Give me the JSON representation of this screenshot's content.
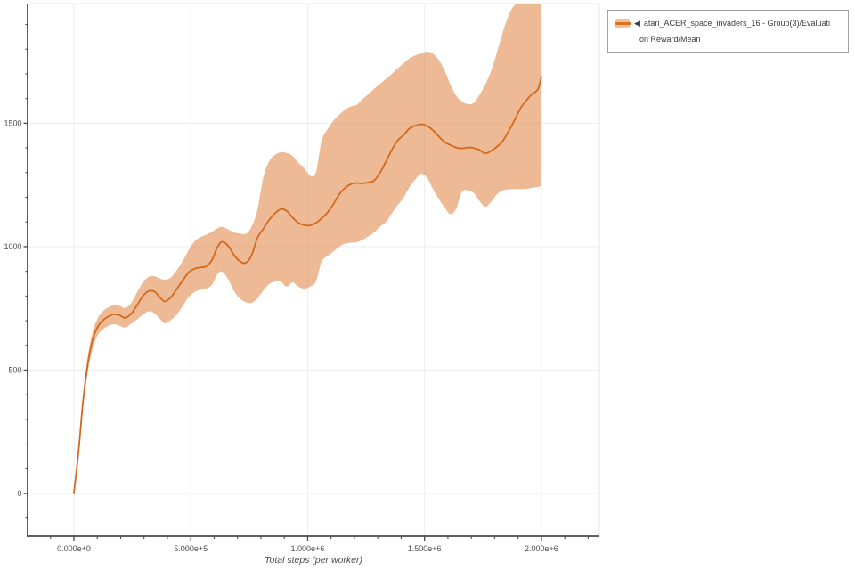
{
  "legend": {
    "collapse_icon": "◀",
    "label_full": "atari_ACER_space_invaders_16 - Group(3)/Evaluation Reward/Mean",
    "label_line1": "atari_ACER_space_invaders_16 - Group(3)/Evaluati",
    "label_line2": "on Reward/Mean"
  },
  "colors": {
    "mean_line": "#d2691e",
    "band_fill": "#e0813f",
    "band_opacity": 0.55,
    "grid": "#ededed",
    "spine_dark": "#4a4a4a",
    "plot_border": "#e4e4e4",
    "tick_label": "#4d4d4d",
    "legend_border": "#a2a2a2"
  },
  "chart_data": {
    "type": "line",
    "title": "",
    "xlabel": "Total steps (per worker)",
    "ylabel": "",
    "grid": true,
    "legend_position": "top-right-outside",
    "xlim": [
      -198000,
      2248000
    ],
    "ylim": [
      -173,
      1985
    ],
    "x_major_ticks": [
      {
        "value": 0,
        "label": "0.000e+0"
      },
      {
        "value": 500000,
        "label": "5.000e+5"
      },
      {
        "value": 1000000,
        "label": "1.000e+6"
      },
      {
        "value": 1500000,
        "label": "1.500e+6"
      },
      {
        "value": 2000000,
        "label": "2.000e+6"
      }
    ],
    "x_minor_step": 100000,
    "y_major_ticks": [
      {
        "value": 0,
        "label": "0"
      },
      {
        "value": 500,
        "label": "500"
      },
      {
        "value": 1000,
        "label": "1000"
      },
      {
        "value": 1500,
        "label": "1500"
      }
    ],
    "y_minor_step": 100,
    "series": [
      {
        "name": "atari_ACER_space_invaders_16 - Group(3)/Evaluation Reward/Mean",
        "line_color": "#d2691e",
        "band_color": "#e0813f",
        "x": [
          0,
          20000,
          40000,
          60000,
          80000,
          100000,
          120000,
          145000,
          170000,
          195000,
          220000,
          245000,
          270000,
          295000,
          320000,
          345000,
          370000,
          390000,
          415000,
          440000,
          465000,
          490000,
          515000,
          540000,
          565000,
          590000,
          615000,
          635000,
          660000,
          685000,
          710000,
          735000,
          760000,
          785000,
          810000,
          835000,
          860000,
          885000,
          910000,
          935000,
          960000,
          985000,
          1010000,
          1035000,
          1060000,
          1085000,
          1110000,
          1135000,
          1160000,
          1185000,
          1210000,
          1235000,
          1260000,
          1285000,
          1310000,
          1335000,
          1360000,
          1385000,
          1410000,
          1435000,
          1460000,
          1485000,
          1510000,
          1535000,
          1560000,
          1585000,
          1610000,
          1635000,
          1660000,
          1685000,
          1710000,
          1735000,
          1760000,
          1785000,
          1810000,
          1835000,
          1860000,
          1885000,
          1910000,
          1935000,
          1960000,
          1985000,
          2000000
        ],
        "mean": [
          0,
          172,
          382,
          528,
          622,
          672,
          698,
          716,
          726,
          722,
          712,
          728,
          762,
          800,
          820,
          818,
          792,
          778,
          795,
          828,
          862,
          895,
          910,
          916,
          920,
          945,
          1000,
          1020,
          1003,
          966,
          941,
          934,
          965,
          1035,
          1072,
          1108,
          1135,
          1152,
          1145,
          1118,
          1097,
          1087,
          1086,
          1096,
          1115,
          1138,
          1172,
          1212,
          1238,
          1253,
          1258,
          1256,
          1260,
          1268,
          1300,
          1345,
          1392,
          1430,
          1452,
          1478,
          1490,
          1496,
          1490,
          1472,
          1448,
          1424,
          1412,
          1402,
          1398,
          1402,
          1400,
          1392,
          1378,
          1388,
          1405,
          1428,
          1468,
          1512,
          1560,
          1592,
          1618,
          1638,
          1688
        ],
        "lower": [
          0,
          150,
          355,
          495,
          585,
          638,
          662,
          678,
          686,
          680,
          672,
          688,
          705,
          725,
          738,
          730,
          705,
          690,
          703,
          725,
          758,
          795,
          815,
          825,
          830,
          845,
          890,
          898,
          868,
          820,
          790,
          775,
          772,
          790,
          822,
          848,
          858,
          858,
          838,
          855,
          838,
          830,
          838,
          858,
          940,
          962,
          980,
          1000,
          1012,
          1016,
          1018,
          1028,
          1042,
          1058,
          1082,
          1100,
          1135,
          1168,
          1198,
          1240,
          1272,
          1295,
          1280,
          1235,
          1195,
          1160,
          1132,
          1152,
          1222,
          1228,
          1218,
          1185,
          1162,
          1182,
          1212,
          1228,
          1232,
          1233,
          1233,
          1234,
          1238,
          1242,
          1245
        ],
        "upper": [
          0,
          195,
          408,
          558,
          655,
          706,
          735,
          753,
          763,
          760,
          752,
          772,
          815,
          855,
          878,
          880,
          870,
          866,
          875,
          905,
          940,
          985,
          1020,
          1038,
          1048,
          1060,
          1075,
          1080,
          1070,
          1058,
          1053,
          1052,
          1080,
          1150,
          1280,
          1345,
          1372,
          1382,
          1380,
          1368,
          1340,
          1320,
          1288,
          1300,
          1430,
          1475,
          1510,
          1535,
          1555,
          1568,
          1575,
          1598,
          1618,
          1640,
          1660,
          1680,
          1700,
          1722,
          1742,
          1762,
          1775,
          1782,
          1790,
          1782,
          1758,
          1715,
          1658,
          1612,
          1588,
          1578,
          1582,
          1615,
          1658,
          1712,
          1788,
          1868,
          1938,
          1978,
          1985,
          1985,
          1985,
          1985,
          1985
        ]
      }
    ]
  }
}
